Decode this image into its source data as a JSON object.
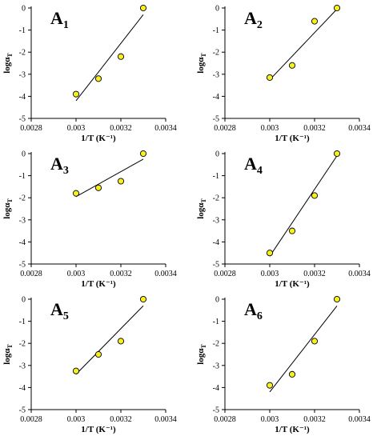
{
  "chart_data": [
    {
      "type": "scatter",
      "label": "A",
      "subscript": "1",
      "xlabel": "1/T (K⁻¹)",
      "ylabel_main": "logα",
      "ylabel_sub": "T",
      "xlim": [
        0.0028,
        0.0034
      ],
      "ylim": [
        -5,
        0
      ],
      "xticks": [
        "0.0028",
        "0.003",
        "0.0032",
        "0.0034"
      ],
      "yticks": [
        "0",
        "-1",
        "-2",
        "-3",
        "-4",
        "-5"
      ],
      "x": [
        0.003,
        0.0031,
        0.0032,
        0.0033
      ],
      "y": [
        -3.9,
        -3.2,
        -2.2,
        0.0
      ],
      "fit": {
        "x": [
          0.003,
          0.0033
        ],
        "y": [
          -4.2,
          -0.3
        ]
      },
      "marker_color": "#f5f01e"
    },
    {
      "type": "scatter",
      "label": "A",
      "subscript": "2",
      "xlabel": "1/T (K⁻¹)",
      "ylabel_main": "logα",
      "ylabel_sub": "T",
      "xlim": [
        0.0028,
        0.0034
      ],
      "ylim": [
        -5,
        0
      ],
      "xticks": [
        "0.0028",
        "0.003",
        "0.0032",
        "0.0034"
      ],
      "yticks": [
        "0",
        "-1",
        "-2",
        "-3",
        "-4",
        "-5"
      ],
      "x": [
        0.003,
        0.0031,
        0.0032,
        0.0033
      ],
      "y": [
        -3.15,
        -2.6,
        -0.6,
        0.0
      ],
      "fit": {
        "x": [
          0.003,
          0.0033
        ],
        "y": [
          -3.25,
          -0.05
        ]
      },
      "marker_color": "#f5f01e"
    },
    {
      "type": "scatter",
      "label": "A",
      "subscript": "3",
      "xlabel": "1/T (K⁻¹)",
      "ylabel_main": "logα",
      "ylabel_sub": "T",
      "xlim": [
        0.0028,
        0.0034
      ],
      "ylim": [
        -5,
        0
      ],
      "xticks": [
        "0.0028",
        "0.003",
        "0.0032",
        "0.0034"
      ],
      "yticks": [
        "0",
        "-1",
        "-2",
        "-3",
        "-4",
        "-5"
      ],
      "x": [
        0.003,
        0.0031,
        0.0032,
        0.0033
      ],
      "y": [
        -1.8,
        -1.55,
        -1.25,
        0.0
      ],
      "fit": {
        "x": [
          0.003,
          0.0033
        ],
        "y": [
          -1.95,
          -0.25
        ]
      },
      "marker_color": "#f5f01e"
    },
    {
      "type": "scatter",
      "label": "A",
      "subscript": "4",
      "xlabel": "1/T (K⁻¹)",
      "ylabel_main": "logα",
      "ylabel_sub": "T",
      "xlim": [
        0.0028,
        0.0034
      ],
      "ylim": [
        -5,
        0
      ],
      "xticks": [
        "0.0028",
        "0.003",
        "0.0032",
        "0.0034"
      ],
      "yticks": [
        "0",
        "-1",
        "-2",
        "-3",
        "-4",
        "-5"
      ],
      "x": [
        0.003,
        0.0031,
        0.0032,
        0.0033
      ],
      "y": [
        -4.5,
        -3.5,
        -1.9,
        0.0
      ],
      "fit": {
        "x": [
          0.003,
          0.0033
        ],
        "y": [
          -4.65,
          -0.1
        ]
      },
      "marker_color": "#f5f01e"
    },
    {
      "type": "scatter",
      "label": "A",
      "subscript": "5",
      "xlabel": "1/T (K⁻¹)",
      "ylabel_main": "logα",
      "ylabel_sub": "T",
      "xlim": [
        0.0028,
        0.0034
      ],
      "ylim": [
        -5,
        0
      ],
      "xticks": [
        "0.0028",
        "0.003",
        "0.0032",
        "0.0034"
      ],
      "yticks": [
        "0",
        "-1",
        "-2",
        "-3",
        "-4",
        "-5"
      ],
      "x": [
        0.003,
        0.0031,
        0.0032,
        0.0033
      ],
      "y": [
        -3.25,
        -2.5,
        -1.9,
        0.0
      ],
      "fit": {
        "x": [
          0.003,
          0.0033
        ],
        "y": [
          -3.4,
          -0.3
        ]
      },
      "marker_color": "#f5f01e"
    },
    {
      "type": "scatter",
      "label": "A",
      "subscript": "6",
      "xlabel": "1/T (K⁻¹)",
      "ylabel_main": "logα",
      "ylabel_sub": "T",
      "xlim": [
        0.0028,
        0.0034
      ],
      "ylim": [
        -5,
        0
      ],
      "xticks": [
        "0.0028",
        "0.003",
        "0.0032",
        "0.0034"
      ],
      "yticks": [
        "0",
        "-1",
        "-2",
        "-3",
        "-4",
        "-5"
      ],
      "x": [
        0.003,
        0.0031,
        0.0032,
        0.0033
      ],
      "y": [
        -3.9,
        -3.4,
        -1.9,
        0.0
      ],
      "fit": {
        "x": [
          0.003,
          0.0033
        ],
        "y": [
          -4.2,
          -0.3
        ]
      },
      "marker_color": "#f5f01e"
    }
  ]
}
